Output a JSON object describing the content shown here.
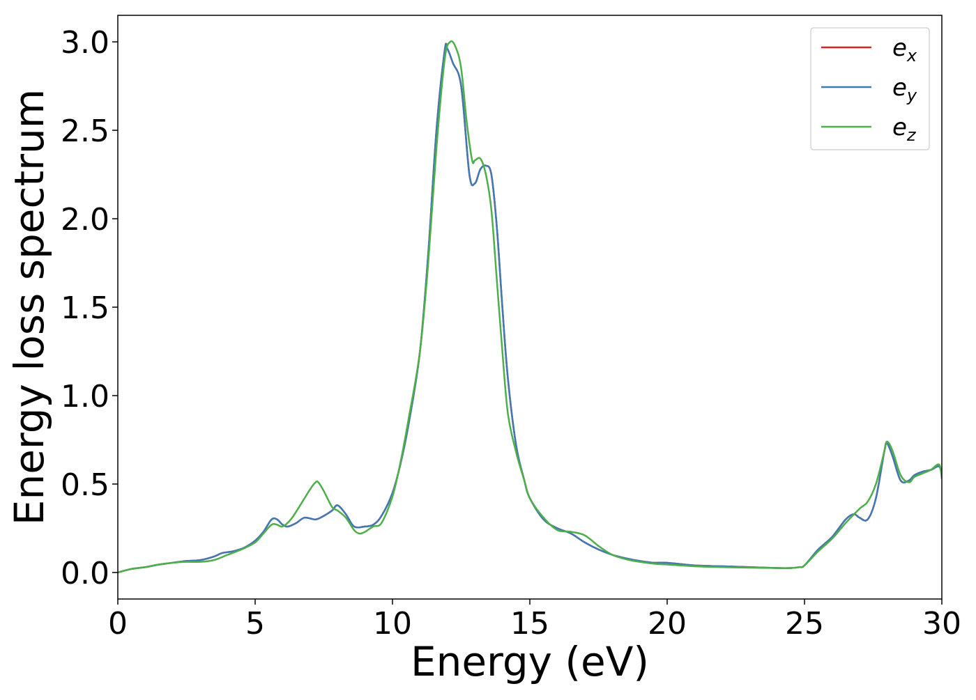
{
  "chart_data": {
    "type": "line",
    "title": "",
    "xlabel": "Energy (eV)",
    "ylabel": "Energy loss spectrum",
    "xlim": [
      0,
      30
    ],
    "ylim": [
      -0.15,
      3.15
    ],
    "xticks": [
      0,
      5,
      10,
      15,
      20,
      25,
      30
    ],
    "yticks": [
      0.0,
      0.5,
      1.0,
      1.5,
      2.0,
      2.5,
      3.0
    ],
    "xtick_labels": [
      "0",
      "5",
      "10",
      "15",
      "20",
      "25",
      "30"
    ],
    "ytick_labels": [
      "0.0",
      "0.5",
      "1.0",
      "1.5",
      "2.0",
      "2.5",
      "3.0"
    ],
    "grid": false,
    "legend_position": "top-right",
    "series": [
      {
        "name": "e_x",
        "label_base": "e",
        "label_sub": "x",
        "color": "#d62728",
        "x": [
          0,
          0.5,
          1,
          1.5,
          2,
          2.5,
          3,
          3.5,
          3.8,
          4.2,
          4.6,
          5,
          5.3,
          5.6,
          5.8,
          6,
          6.2,
          6.5,
          6.8,
          7.2,
          7.5,
          7.8,
          8,
          8.3,
          8.6,
          9,
          9.3,
          9.6,
          10,
          10.3,
          10.6,
          11,
          11.3,
          11.6,
          11.9,
          12,
          12.2,
          12.5,
          12.8,
          13,
          13.2,
          13.4,
          13.6,
          13.8,
          14,
          14.2,
          14.5,
          14.8,
          15,
          15.5,
          16,
          16.5,
          17,
          17.5,
          18,
          18.5,
          19,
          19.5,
          20,
          21,
          22,
          23,
          24,
          24.5,
          24.8,
          25,
          25.5,
          26,
          26.5,
          26.8,
          27,
          27.3,
          27.6,
          27.9,
          28,
          28.2,
          28.5,
          28.8,
          29,
          29.3,
          29.6,
          29.9,
          30
        ],
        "y": [
          0,
          0.02,
          0.03,
          0.045,
          0.055,
          0.065,
          0.07,
          0.09,
          0.11,
          0.12,
          0.14,
          0.18,
          0.23,
          0.3,
          0.3,
          0.27,
          0.26,
          0.28,
          0.31,
          0.3,
          0.32,
          0.35,
          0.38,
          0.33,
          0.26,
          0.26,
          0.27,
          0.32,
          0.45,
          0.62,
          0.85,
          1.25,
          1.8,
          2.5,
          2.95,
          2.96,
          2.88,
          2.75,
          2.25,
          2.2,
          2.28,
          2.3,
          2.25,
          1.95,
          1.5,
          1.1,
          0.72,
          0.52,
          0.42,
          0.3,
          0.25,
          0.22,
          0.17,
          0.13,
          0.1,
          0.08,
          0.065,
          0.055,
          0.055,
          0.04,
          0.035,
          0.03,
          0.025,
          0.025,
          0.03,
          0.04,
          0.13,
          0.2,
          0.3,
          0.33,
          0.31,
          0.3,
          0.42,
          0.68,
          0.73,
          0.66,
          0.52,
          0.52,
          0.55,
          0.57,
          0.58,
          0.6,
          0.55
        ]
      },
      {
        "name": "e_y",
        "label_base": "e",
        "label_sub": "y",
        "color": "#3f7ab4",
        "x": [
          0,
          0.5,
          1,
          1.5,
          2,
          2.5,
          3,
          3.5,
          3.8,
          4.2,
          4.6,
          5,
          5.3,
          5.6,
          5.8,
          6,
          6.2,
          6.5,
          6.8,
          7.2,
          7.5,
          7.8,
          8,
          8.3,
          8.6,
          9,
          9.3,
          9.6,
          10,
          10.3,
          10.6,
          11,
          11.3,
          11.6,
          11.9,
          12,
          12.2,
          12.5,
          12.8,
          13,
          13.2,
          13.4,
          13.6,
          13.8,
          14,
          14.2,
          14.5,
          14.8,
          15,
          15.5,
          16,
          16.5,
          17,
          17.5,
          18,
          18.5,
          19,
          19.5,
          20,
          21,
          22,
          23,
          24,
          24.5,
          24.8,
          25,
          25.5,
          26,
          26.5,
          26.8,
          27,
          27.3,
          27.6,
          27.9,
          28,
          28.2,
          28.5,
          28.8,
          29,
          29.3,
          29.6,
          29.9,
          30
        ],
        "y": [
          0,
          0.02,
          0.03,
          0.045,
          0.055,
          0.065,
          0.07,
          0.09,
          0.11,
          0.12,
          0.14,
          0.18,
          0.23,
          0.3,
          0.3,
          0.27,
          0.26,
          0.28,
          0.31,
          0.3,
          0.32,
          0.35,
          0.38,
          0.33,
          0.26,
          0.26,
          0.27,
          0.32,
          0.45,
          0.62,
          0.85,
          1.25,
          1.8,
          2.5,
          2.95,
          2.96,
          2.88,
          2.75,
          2.25,
          2.2,
          2.28,
          2.3,
          2.25,
          1.95,
          1.5,
          1.1,
          0.72,
          0.52,
          0.42,
          0.3,
          0.25,
          0.22,
          0.17,
          0.13,
          0.1,
          0.08,
          0.065,
          0.055,
          0.055,
          0.04,
          0.035,
          0.03,
          0.025,
          0.025,
          0.03,
          0.04,
          0.13,
          0.2,
          0.3,
          0.33,
          0.31,
          0.3,
          0.42,
          0.68,
          0.73,
          0.66,
          0.52,
          0.52,
          0.55,
          0.57,
          0.58,
          0.6,
          0.55
        ]
      },
      {
        "name": "e_z",
        "label_base": "e",
        "label_sub": "z",
        "color": "#4daf4a",
        "x": [
          0,
          0.5,
          1,
          1.5,
          2,
          2.5,
          3,
          3.5,
          4,
          4.5,
          5,
          5.3,
          5.6,
          5.8,
          6,
          6.3,
          6.6,
          7,
          7.2,
          7.3,
          7.5,
          7.8,
          8,
          8.3,
          8.6,
          8.8,
          9,
          9.3,
          9.6,
          10,
          10.3,
          10.6,
          11,
          11.3,
          11.6,
          11.9,
          12.1,
          12.3,
          12.5,
          12.7,
          12.9,
          13,
          13.2,
          13.4,
          13.6,
          13.8,
          14,
          14.2,
          14.5,
          14.8,
          15,
          15.5,
          16,
          16.5,
          17,
          17.5,
          18,
          18.5,
          19,
          19.5,
          20,
          21,
          22,
          23,
          24,
          24.5,
          24.8,
          25,
          25.5,
          26,
          26.5,
          27,
          27.3,
          27.6,
          27.9,
          28,
          28.2,
          28.5,
          28.8,
          29,
          29.3,
          29.6,
          29.9,
          30
        ],
        "y": [
          0,
          0.02,
          0.03,
          0.045,
          0.055,
          0.06,
          0.06,
          0.07,
          0.1,
          0.13,
          0.17,
          0.22,
          0.27,
          0.27,
          0.26,
          0.3,
          0.37,
          0.47,
          0.51,
          0.51,
          0.46,
          0.37,
          0.35,
          0.31,
          0.24,
          0.22,
          0.23,
          0.26,
          0.28,
          0.43,
          0.63,
          0.88,
          1.25,
          1.75,
          2.4,
          2.9,
          3.0,
          2.97,
          2.85,
          2.55,
          2.33,
          2.33,
          2.34,
          2.25,
          2.05,
          1.65,
          1.25,
          0.9,
          0.68,
          0.52,
          0.42,
          0.31,
          0.24,
          0.23,
          0.21,
          0.15,
          0.1,
          0.075,
          0.06,
          0.05,
          0.045,
          0.035,
          0.03,
          0.027,
          0.025,
          0.025,
          0.03,
          0.04,
          0.12,
          0.19,
          0.28,
          0.36,
          0.4,
          0.5,
          0.68,
          0.74,
          0.69,
          0.55,
          0.51,
          0.54,
          0.56,
          0.58,
          0.61,
          0.53
        ]
      }
    ]
  }
}
